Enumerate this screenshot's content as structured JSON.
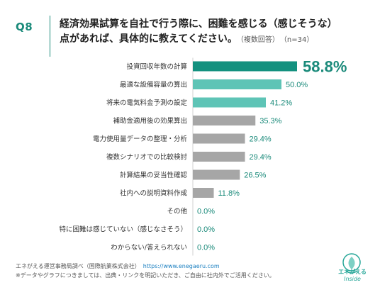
{
  "header": {
    "qlabel": "Q8",
    "title_line1": "経済効果試算を自社で行う際に、困難を感じる（感じそうな）",
    "title_line2": "点があれば、具体的に教えてください。",
    "subtitle": "（複数回答）",
    "n_label": "（n=34）"
  },
  "chart_data": {
    "type": "bar",
    "orientation": "horizontal",
    "categories": [
      "投資回収年数の計算",
      "最適な設備容量の算出",
      "将来の電気料金予測の設定",
      "補助金適用後の効果算出",
      "電力使用量データの整理・分析",
      "複数シナリオでの比較検討",
      "計算結果の妥当性確認",
      "社内への説明資料作成",
      "その他",
      "特に困難は感じていない（感じなさそう）",
      "わからない/答えられない"
    ],
    "values": [
      58.8,
      50.0,
      41.2,
      35.3,
      29.4,
      29.4,
      26.5,
      11.8,
      0.0,
      0.0,
      0.0
    ],
    "value_labels": [
      "58.8%",
      "50.0%",
      "41.2%",
      "35.3%",
      "29.4%",
      "29.4%",
      "26.5%",
      "11.8%",
      "0.0%",
      "0.0%",
      "0.0%"
    ],
    "xlim": [
      0,
      100
    ],
    "grid": false,
    "colors": {
      "top": "#13917f",
      "highlight": "#5ec4b6",
      "other": "#a6a6a6",
      "label_teal": "#1a8a7a"
    }
  },
  "footer": {
    "line1": "エネがえる運営事務局調べ（国際航業株式会社）",
    "link": "https://www.enegaeru.com",
    "line2": "※データやグラフにつきましては、出典・リンクを明記いただき、ご自由に社内外でご活用ください。"
  },
  "logo": {
    "text1": "エネがえる",
    "text2": "Inside"
  }
}
